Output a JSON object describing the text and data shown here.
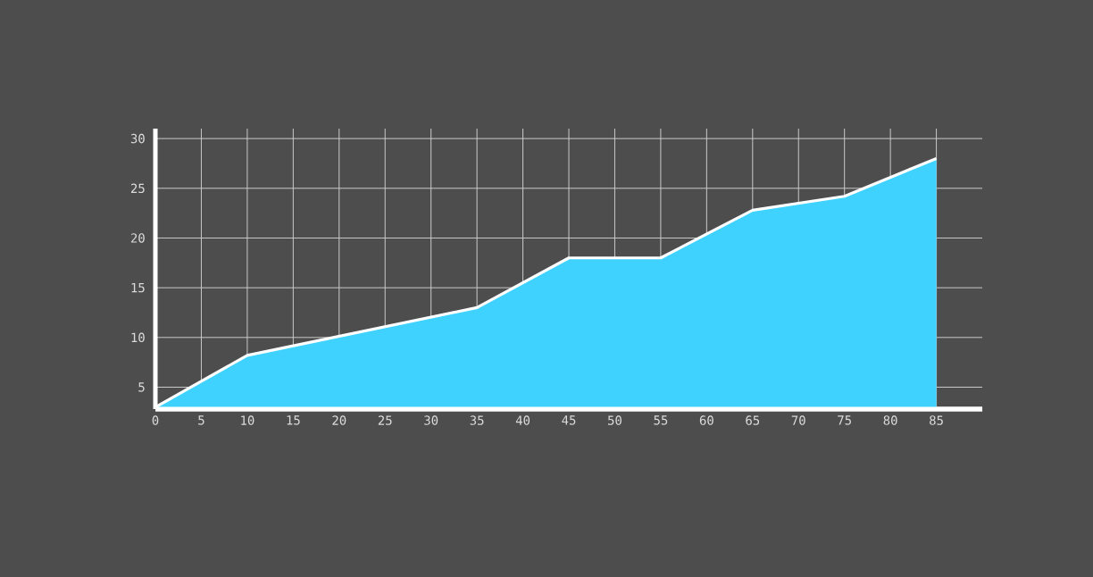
{
  "chart_data": {
    "type": "area",
    "x": [
      0,
      10,
      35,
      45,
      55,
      65,
      75,
      85
    ],
    "values": [
      3,
      8.2,
      13,
      18,
      18,
      22.8,
      24.2,
      28
    ],
    "color": "#40d2ff",
    "xlim": [
      0,
      90
    ],
    "ylim": [
      2.8,
      31
    ],
    "xticks": [
      0,
      5,
      10,
      15,
      20,
      25,
      30,
      35,
      40,
      45,
      50,
      55,
      60,
      65,
      70,
      75,
      80,
      85
    ],
    "yticks": [
      5,
      10,
      15,
      20,
      25,
      30
    ],
    "grid": true
  }
}
